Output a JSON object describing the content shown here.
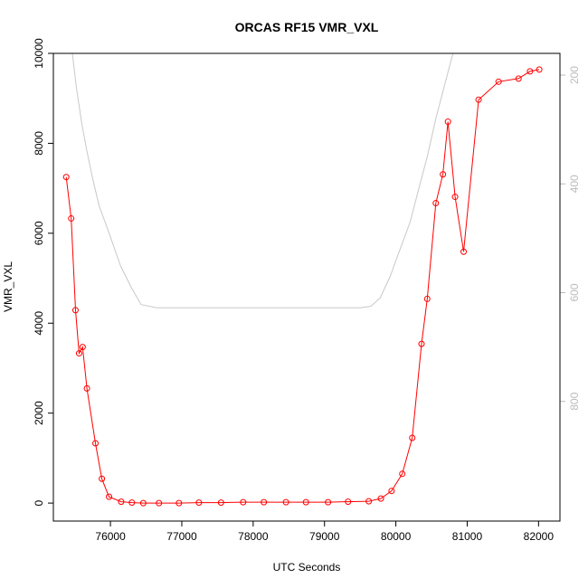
{
  "chart_data": {
    "type": "line",
    "title": "ORCAS RF15 VMR_VXL",
    "xlabel": "UTC Seconds",
    "ylabel": "VMR_VXL",
    "xlim": [
      75200,
      82300
    ],
    "ylim": [
      -400,
      10000
    ],
    "x_ticks": [
      76000,
      77000,
      78000,
      79000,
      80000,
      81000,
      82000
    ],
    "y_ticks": [
      0,
      2000,
      4000,
      6000,
      8000,
      10000
    ],
    "y2_ticks": [
      200,
      400,
      600,
      800
    ],
    "y2_lim": [
      1020,
      160
    ],
    "grid": false,
    "series": [
      {
        "color": "#ff0000",
        "axis": "left",
        "marker": "open-circle",
        "x": [
          75380,
          75450,
          75510,
          75560,
          75610,
          75670,
          75790,
          75880,
          75980,
          76150,
          76300,
          76460,
          76680,
          76960,
          77240,
          77550,
          77860,
          78150,
          78460,
          78740,
          79050,
          79330,
          79620,
          79790,
          79940,
          80090,
          80230,
          80360,
          80440,
          80560,
          80660,
          80730,
          80830,
          80950,
          81160,
          81440,
          81720,
          81880,
          82010
        ],
        "y": [
          7250,
          6330,
          4290,
          3330,
          3470,
          2550,
          1330,
          540,
          140,
          30,
          10,
          0,
          0,
          0,
          10,
          10,
          20,
          20,
          20,
          20,
          20,
          30,
          40,
          100,
          270,
          650,
          1450,
          3540,
          4540,
          6670,
          7310,
          8480,
          6810,
          5590,
          8970,
          9370,
          9440,
          9600,
          9640
        ]
      },
      {
        "color": "#c8c8c8",
        "axis": "right",
        "marker": "none",
        "x": [
          75280,
          75440,
          75520,
          75600,
          75670,
          75750,
          75840,
          75980,
          76140,
          76290,
          76430,
          76650,
          76900,
          77400,
          78000,
          78600,
          79200,
          79500,
          79650,
          79780,
          79920,
          80060,
          80200,
          80320,
          80440,
          80560,
          80680,
          80800,
          80910,
          81020,
          81120
        ],
        "y2": [
          60,
          130,
          220,
          290,
          340,
          390,
          440,
          490,
          550,
          590,
          622,
          628,
          628,
          628,
          628,
          628,
          628,
          628,
          625,
          610,
          570,
          520,
          470,
          410,
          350,
          280,
          220,
          160,
          110,
          70,
          40
        ]
      }
    ]
  }
}
